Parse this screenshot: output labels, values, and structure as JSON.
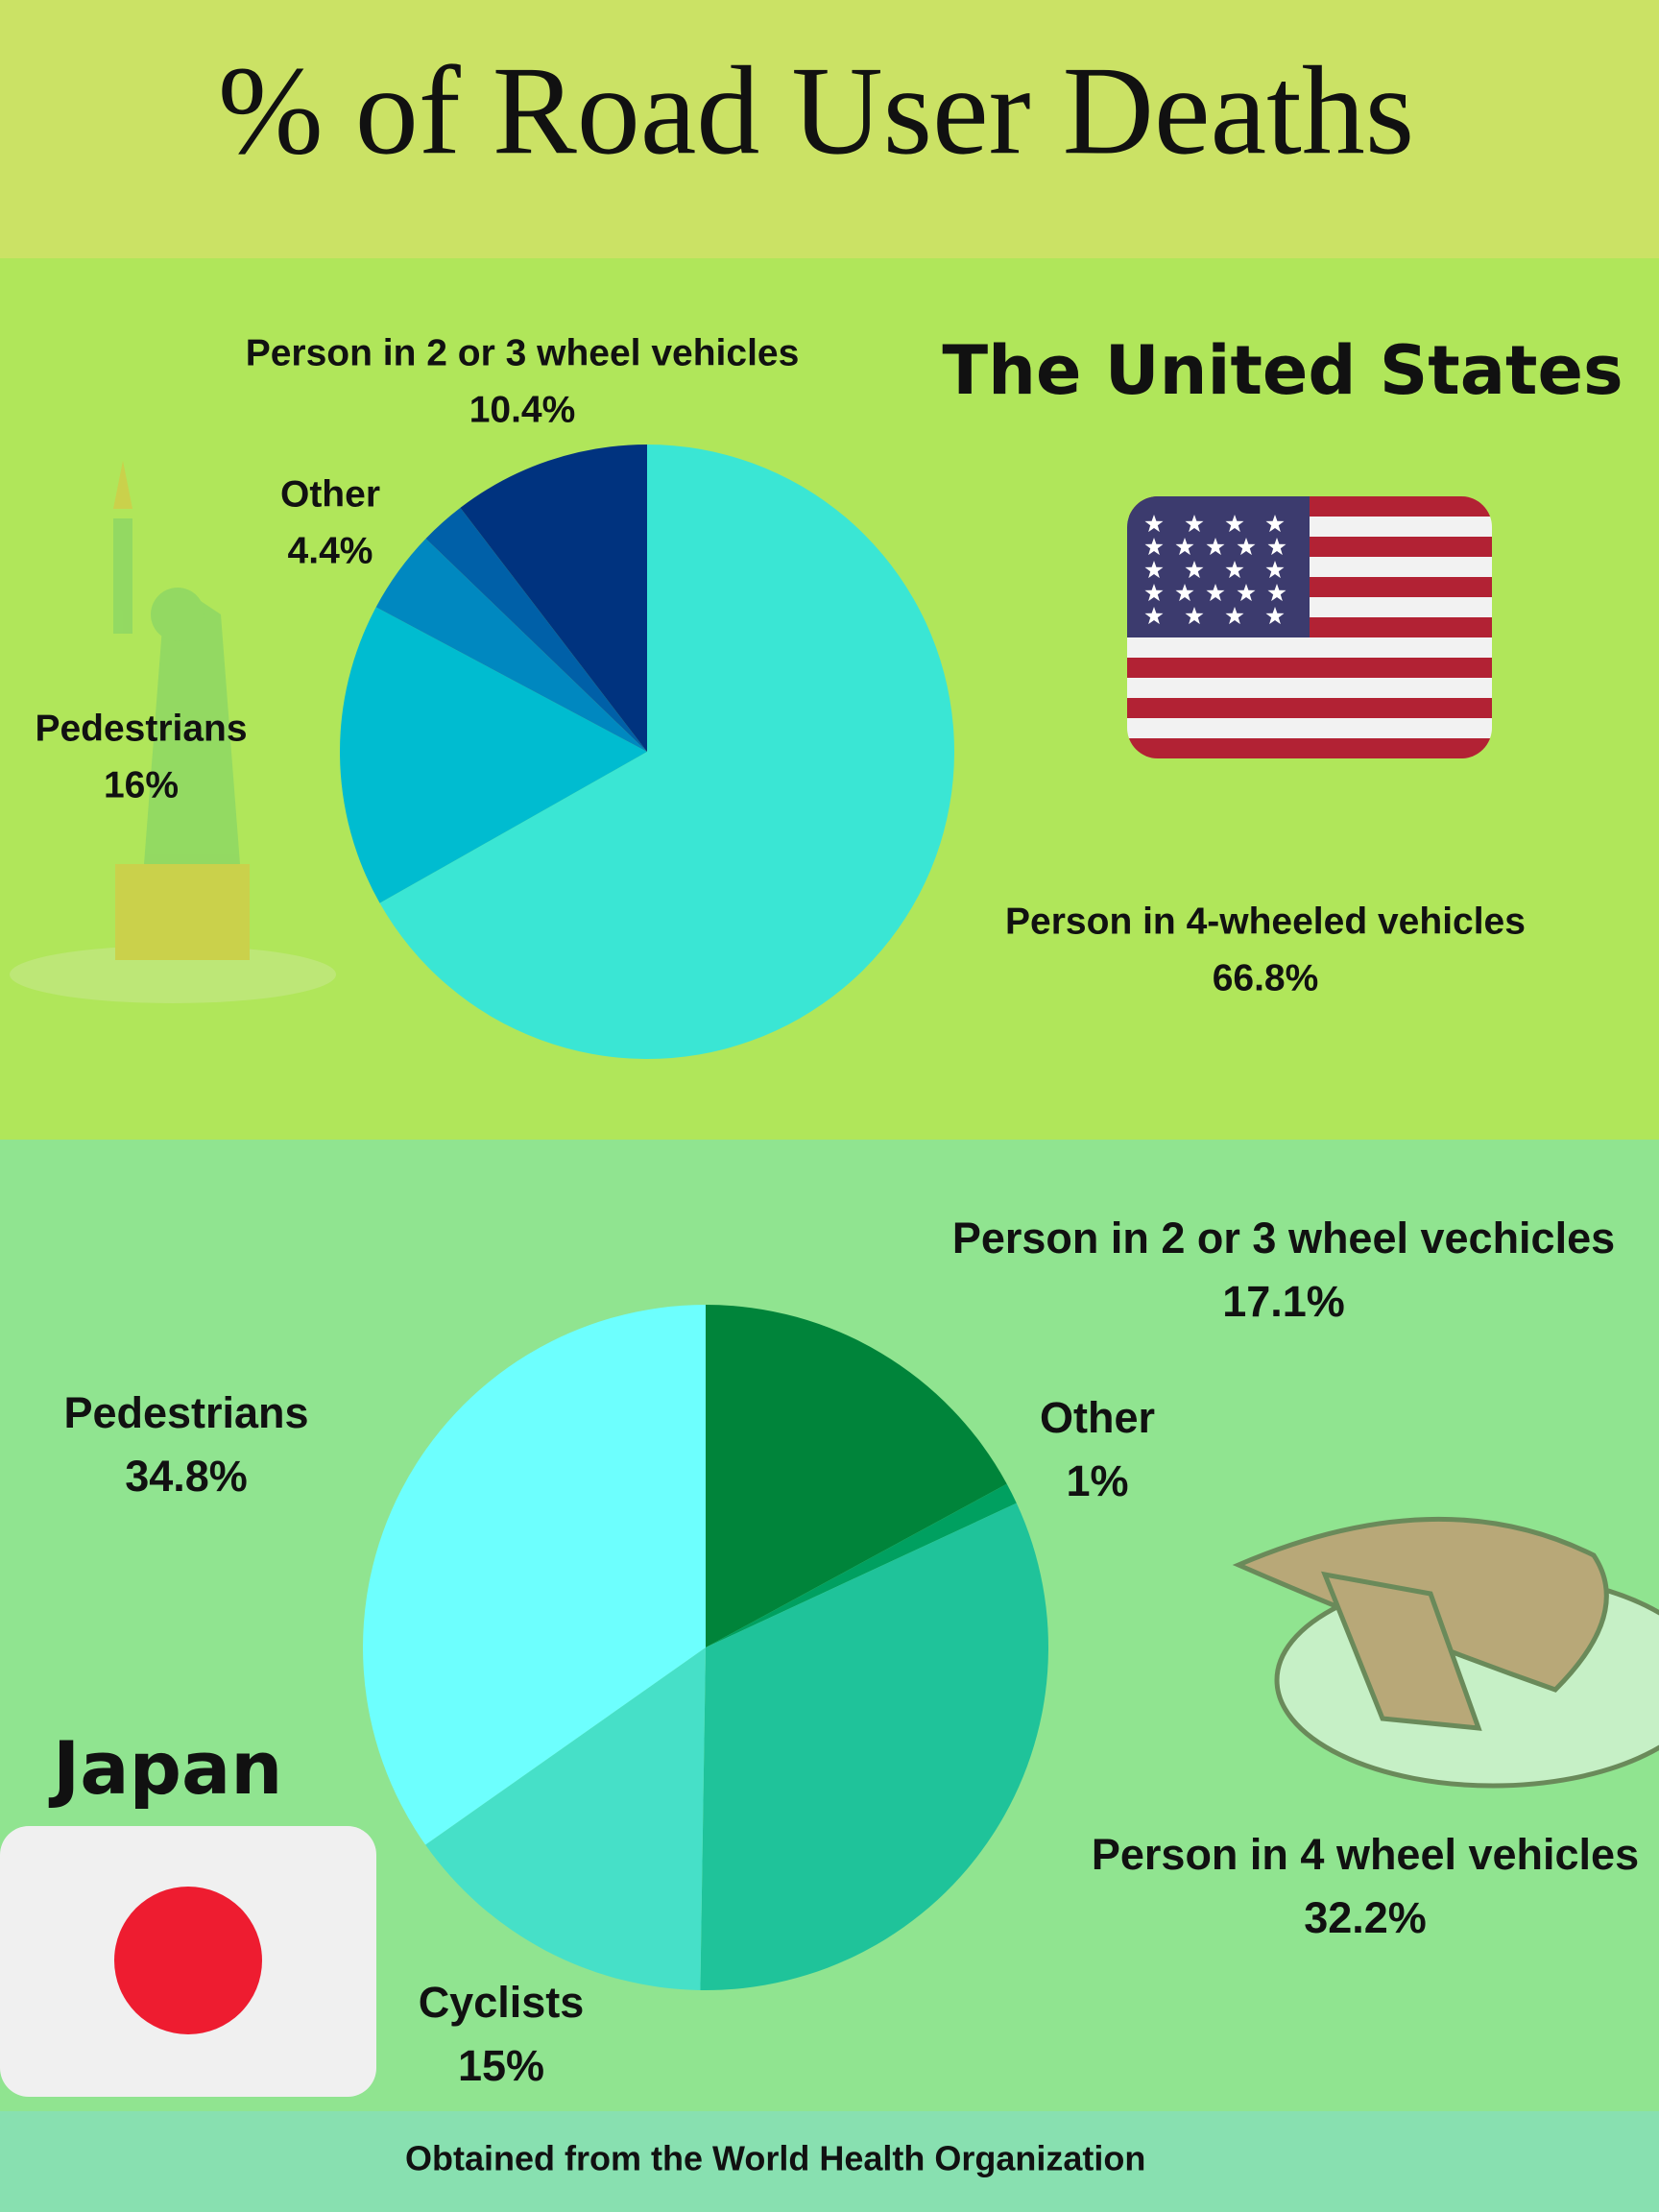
{
  "title": "% of Road User Deaths",
  "chart_data": [
    {
      "type": "pie",
      "title": "The United States",
      "categories": [
        "Person in 4-wheeled vehicles",
        "Pedestrians",
        "Other",
        null,
        "Person in 2 or 3 wheel vehicles"
      ],
      "values": [
        66.8,
        16,
        4.4,
        2.4,
        10.4
      ],
      "value_labels": [
        "66.8%",
        "16%",
        "4.4%",
        null,
        "10.4%"
      ],
      "colors": [
        "#3ae6d4",
        "#00bcd0",
        "#0088c0",
        "#0060a8",
        "#00337f"
      ]
    },
    {
      "type": "pie",
      "title": "Japan",
      "categories": [
        "Person in 2 or 3 wheel vechicles",
        "Other",
        "Person in 4 wheel vehicles",
        "Cyclists",
        "Pedestrians"
      ],
      "values": [
        17.1,
        1,
        32.2,
        15,
        34.8
      ],
      "value_labels": [
        "17.1%",
        "1%",
        "32.2%",
        "15%",
        "34.8%"
      ],
      "colors": [
        "#00843a",
        "#00a060",
        "#1fc39a",
        "#46e0c8",
        "#6dfffe"
      ]
    }
  ],
  "source": "Obtained from the World Health Organization"
}
